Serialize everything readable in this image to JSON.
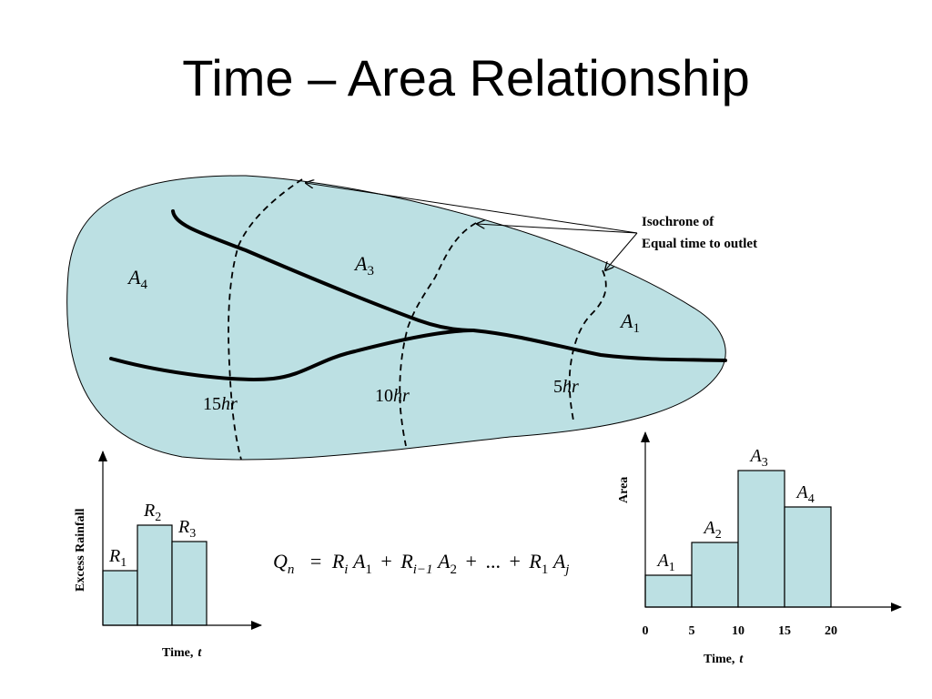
{
  "title": "Time – Area Relationship",
  "colors": {
    "fill": "#bce0e3",
    "stroke": "#000000",
    "background": "#ffffff"
  },
  "watershed": {
    "area_labels": [
      {
        "base": "A",
        "sub": "4"
      },
      {
        "base": "A",
        "sub": "3"
      },
      {
        "base": "A",
        "sub": "1"
      }
    ],
    "isochrones": [
      {
        "num": "15",
        "unit": "hr"
      },
      {
        "num": "10",
        "unit": "hr"
      },
      {
        "num": "5",
        "unit": "hr"
      }
    ],
    "callout": [
      "Isochrone of",
      "Equal time to outlet"
    ]
  },
  "formula": {
    "q": "Q",
    "q_sub": "n",
    "eq": "=",
    "r": "R",
    "sub_i": "i",
    "a": "A",
    "sub_1": "1",
    "plus": "+",
    "sub_i_minus_1": "i−1",
    "sub_2": "2",
    "ellipsis": "...",
    "sub_j": "j"
  },
  "chart_data": [
    {
      "type": "bar",
      "ylabel": "Excess Rainfall",
      "xlabel": {
        "text": "Time,",
        "var": "t"
      },
      "categories": [
        "R1",
        "R2",
        "R3"
      ],
      "bar_labels": [
        {
          "base": "R",
          "sub": "1"
        },
        {
          "base": "R",
          "sub": "2"
        },
        {
          "base": "R",
          "sub": "3"
        }
      ],
      "values": [
        0.6,
        1.1,
        0.92
      ],
      "ylim": [
        0,
        1.9
      ],
      "grid": false,
      "legend": "none"
    },
    {
      "type": "bar",
      "ylabel": "Area",
      "xlabel": {
        "text": "Time,",
        "var": "t"
      },
      "x_ticks": [
        "0",
        "5",
        "10",
        "15",
        "20"
      ],
      "categories": [
        "A1",
        "A2",
        "A3",
        "A4"
      ],
      "bar_labels": [
        {
          "base": "A",
          "sub": "1"
        },
        {
          "base": "A",
          "sub": "2"
        },
        {
          "base": "A",
          "sub": "3"
        },
        {
          "base": "A",
          "sub": "4"
        }
      ],
      "values": [
        0.35,
        0.71,
        1.5,
        1.1
      ],
      "ylim": [
        0,
        1.9
      ],
      "grid": false,
      "legend": "none"
    }
  ]
}
